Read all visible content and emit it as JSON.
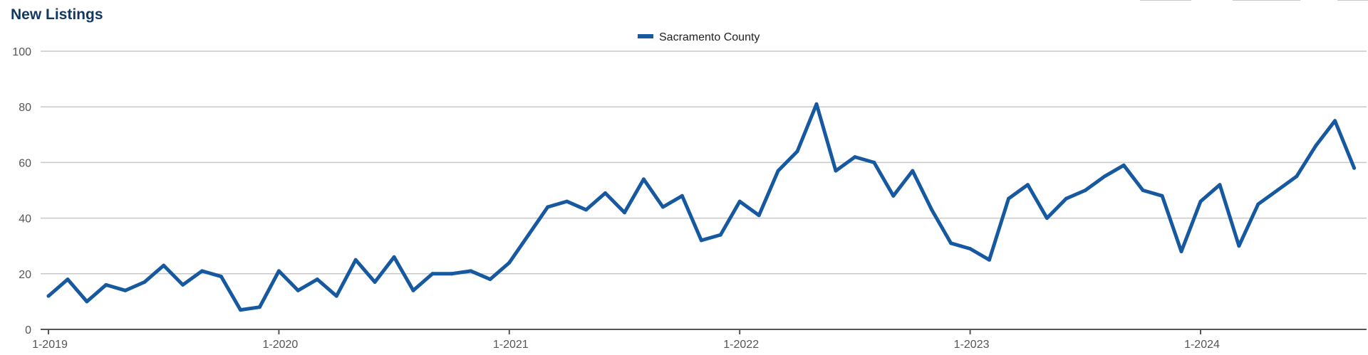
{
  "chart_data": {
    "type": "line",
    "title": "New Listings",
    "xlabel": "",
    "ylabel": "",
    "ylim": [
      0,
      100
    ],
    "y_ticks": [
      0,
      20,
      40,
      60,
      80,
      100
    ],
    "x_tick_labels": [
      "1-2019",
      "1-2020",
      "1-2021",
      "1-2022",
      "1-2023",
      "1-2024"
    ],
    "x": [
      "1-2019",
      "2-2019",
      "3-2019",
      "4-2019",
      "5-2019",
      "6-2019",
      "7-2019",
      "8-2019",
      "9-2019",
      "10-2019",
      "11-2019",
      "12-2019",
      "1-2020",
      "2-2020",
      "3-2020",
      "4-2020",
      "5-2020",
      "6-2020",
      "7-2020",
      "8-2020",
      "9-2020",
      "10-2020",
      "11-2020",
      "12-2020",
      "1-2021",
      "2-2021",
      "3-2021",
      "4-2021",
      "5-2021",
      "6-2021",
      "7-2021",
      "8-2021",
      "9-2021",
      "10-2021",
      "11-2021",
      "12-2021",
      "1-2022",
      "2-2022",
      "3-2022",
      "4-2022",
      "5-2022",
      "6-2022",
      "7-2022",
      "8-2022",
      "9-2022",
      "10-2022",
      "11-2022",
      "12-2022",
      "1-2023",
      "2-2023",
      "3-2023",
      "4-2023",
      "5-2023",
      "6-2023",
      "7-2023",
      "8-2023",
      "9-2023",
      "10-2023",
      "11-2023",
      "12-2023",
      "1-2024",
      "2-2024",
      "3-2024",
      "4-2024",
      "5-2024",
      "6-2024",
      "7-2024",
      "8-2024",
      "9-2024"
    ],
    "series": [
      {
        "name": "Sacramento County",
        "color": "#1659a0",
        "values": [
          12,
          18,
          10,
          16,
          14,
          17,
          23,
          16,
          21,
          19,
          7,
          8,
          21,
          14,
          18,
          12,
          25,
          17,
          26,
          14,
          20,
          20,
          21,
          18,
          24,
          34,
          44,
          46,
          43,
          49,
          42,
          54,
          44,
          48,
          32,
          34,
          46,
          41,
          57,
          64,
          81,
          57,
          62,
          60,
          48,
          57,
          43,
          31,
          29,
          25,
          47,
          52,
          40,
          47,
          50,
          55,
          59,
          50,
          48,
          28,
          46,
          52,
          30,
          45,
          50,
          55,
          66,
          75,
          58
        ]
      }
    ],
    "grid": true,
    "legend_position": "top-center"
  },
  "colors": {
    "title": "#14375f",
    "line": "#1659a0",
    "grid": "#c8c8c8",
    "axis": "#555555"
  }
}
